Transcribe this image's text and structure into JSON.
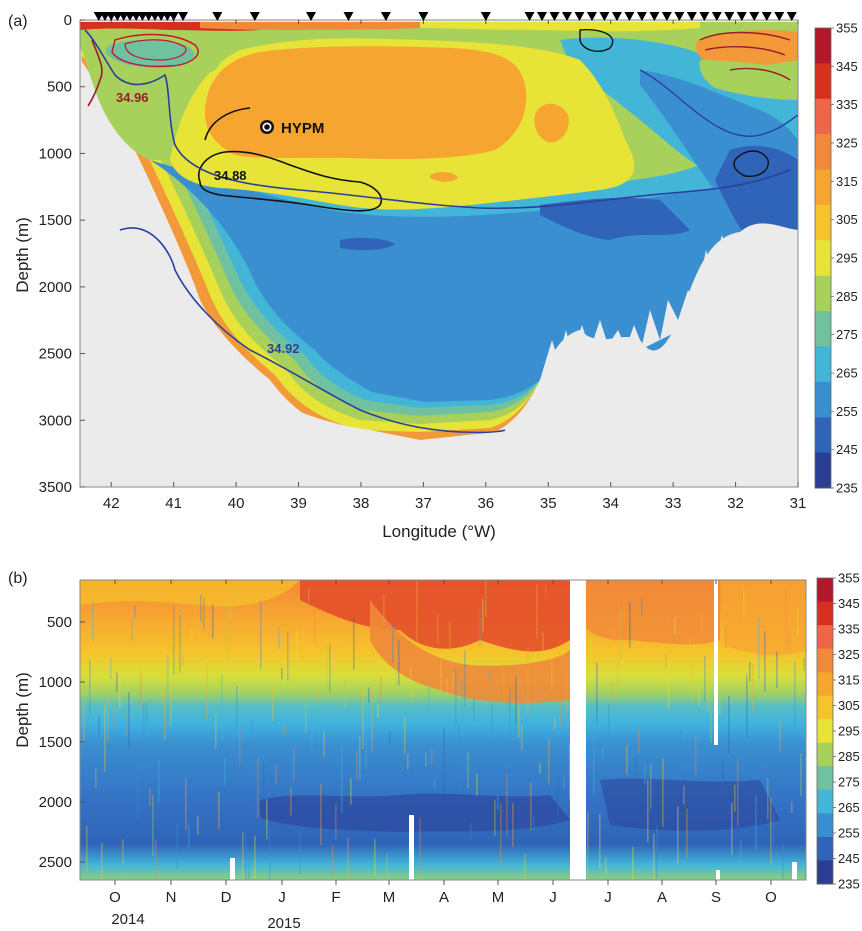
{
  "chart_data": [
    {
      "panel": "(a)",
      "type": "heatmap",
      "xlabel": "Longitude (°W)",
      "ylabel": "Depth (m)",
      "xlim": [
        42.5,
        31
      ],
      "ylim": [
        3500,
        0
      ],
      "x_ticks": [
        "42",
        "41",
        "40",
        "39",
        "38",
        "37",
        "36",
        "35",
        "34",
        "33",
        "32",
        "31"
      ],
      "y_ticks": [
        "0",
        "500",
        "1000",
        "1500",
        "2000",
        "2500",
        "3000",
        "3500"
      ],
      "colorbar": {
        "min": 235,
        "max": 355,
        "ticks": [
          "355",
          "345",
          "335",
          "325",
          "315",
          "305",
          "295",
          "285",
          "275",
          "265",
          "255",
          "245",
          "235"
        ],
        "colors": [
          "#b2182b",
          "#d7301f",
          "#ef6548",
          "#f08a3a",
          "#f7a531",
          "#f6c32b",
          "#e8e337",
          "#a8d15b",
          "#6fc1a0",
          "#43b6d8",
          "#3a8fd0",
          "#2f64b8",
          "#2a3e94"
        ]
      },
      "station_markers_lon": [
        42.2,
        42.1,
        42.0,
        41.9,
        41.8,
        41.7,
        41.6,
        41.5,
        41.4,
        41.3,
        41.2,
        41.1,
        41.0,
        40.85,
        40.3,
        39.7,
        38.8,
        38.2,
        37.6,
        37.0,
        36.0,
        35.3,
        35.1,
        34.9,
        34.7,
        34.5,
        34.3,
        34.1,
        33.9,
        33.7,
        33.5,
        33.3,
        33.1,
        32.9,
        32.7,
        32.5,
        32.3,
        32.1,
        31.9,
        31.7,
        31.5,
        31.3,
        31.1
      ],
      "contours": [
        {
          "label": "34.96",
          "color": "#9b1c2c"
        },
        {
          "label": "34.88",
          "color": "#111111"
        },
        {
          "label": "34.92",
          "color": "#2b3f9e"
        }
      ],
      "annotation": {
        "label": "HYPM",
        "lon": 39.5,
        "depth": 800
      }
    },
    {
      "panel": "(b)",
      "type": "heatmap",
      "ylabel": "Depth (m)",
      "ylim": [
        2650,
        150
      ],
      "x_ticks": [
        "O",
        "N",
        "D",
        "J",
        "F",
        "M",
        "A",
        "M",
        "J",
        "J",
        "A",
        "S",
        "O"
      ],
      "year_labels": [
        "2014",
        "2015"
      ],
      "y_ticks": [
        "500",
        "1000",
        "1500",
        "2000",
        "2500"
      ],
      "colorbar": {
        "min": 235,
        "max": 355,
        "ticks": [
          "355",
          "345",
          "335",
          "325",
          "315",
          "305",
          "295",
          "285",
          "275",
          "265",
          "255",
          "245",
          "235"
        ],
        "colors": [
          "#b2182b",
          "#d7301f",
          "#ef6548",
          "#f08a3a",
          "#f7a531",
          "#f6c32b",
          "#e8e337",
          "#a8d15b",
          "#6fc1a0",
          "#43b6d8",
          "#3a8fd0",
          "#2f64b8",
          "#2a3e94"
        ]
      }
    }
  ]
}
